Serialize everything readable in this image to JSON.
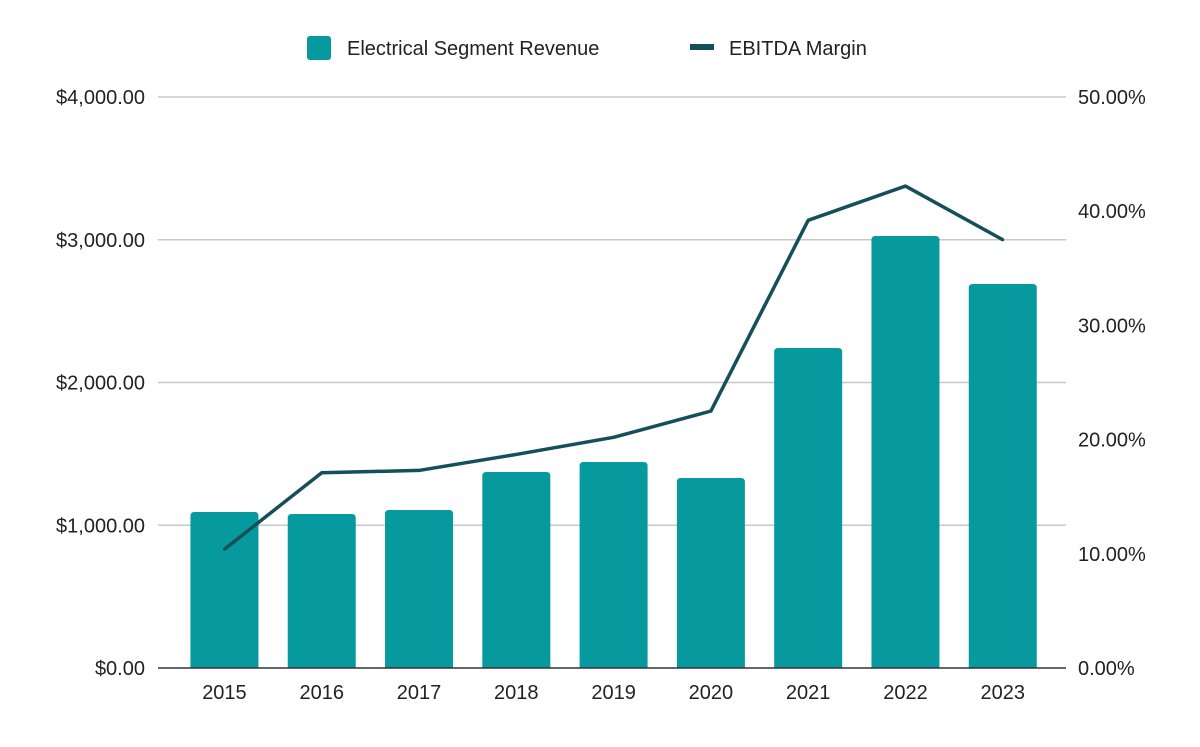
{
  "chart_data": {
    "type": "bar+line",
    "categories": [
      "2015",
      "2016",
      "2017",
      "2018",
      "2019",
      "2020",
      "2021",
      "2022",
      "2023"
    ],
    "series": [
      {
        "name": "Electrical Segment Revenue",
        "type": "bar",
        "axis": "left",
        "color": "#069a9e",
        "values": [
          1093,
          1079,
          1107,
          1373,
          1443,
          1331,
          2242,
          3026,
          2690
        ]
      },
      {
        "name": "EBITDA Margin",
        "type": "line",
        "axis": "right",
        "color": "#154f5a",
        "values": [
          10.4,
          17.1,
          17.3,
          18.7,
          20.2,
          22.5,
          39.2,
          42.2,
          37.5
        ]
      }
    ],
    "left_axis": {
      "ylim": [
        0,
        4000
      ],
      "ticks": [
        "$0.00",
        "$1,000.00",
        "$2,000.00",
        "$3,000.00",
        "$4,000.00"
      ]
    },
    "right_axis": {
      "ylim": [
        0,
        50
      ],
      "ticks": [
        "0.00%",
        "10.00%",
        "20.00%",
        "30.00%",
        "40.00%",
        "50.00%"
      ]
    },
    "grid": true,
    "legend": "top"
  }
}
